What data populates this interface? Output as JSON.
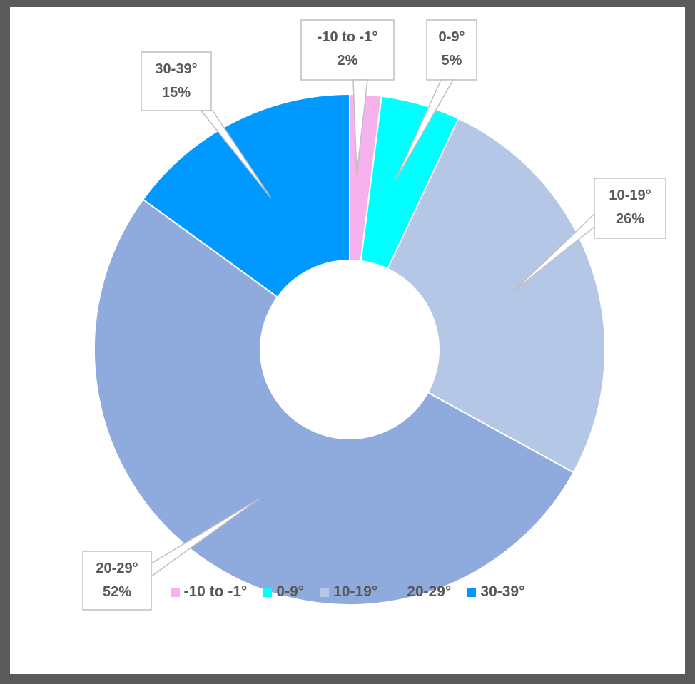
{
  "chart_data": {
    "type": "donut",
    "categories": [
      "-10 to -1°",
      "0-9°",
      "10-19°",
      "20-29°",
      "30-39°"
    ],
    "values": [
      2,
      5,
      26,
      52,
      15
    ],
    "value_labels": [
      "2%",
      "5%",
      "26%",
      "52%",
      "15%"
    ],
    "colors": [
      "#f7b2ee",
      "#00ffff",
      "#b4c7e7",
      "#8faadc",
      "#0099ff"
    ],
    "legend": "bottom"
  }
}
